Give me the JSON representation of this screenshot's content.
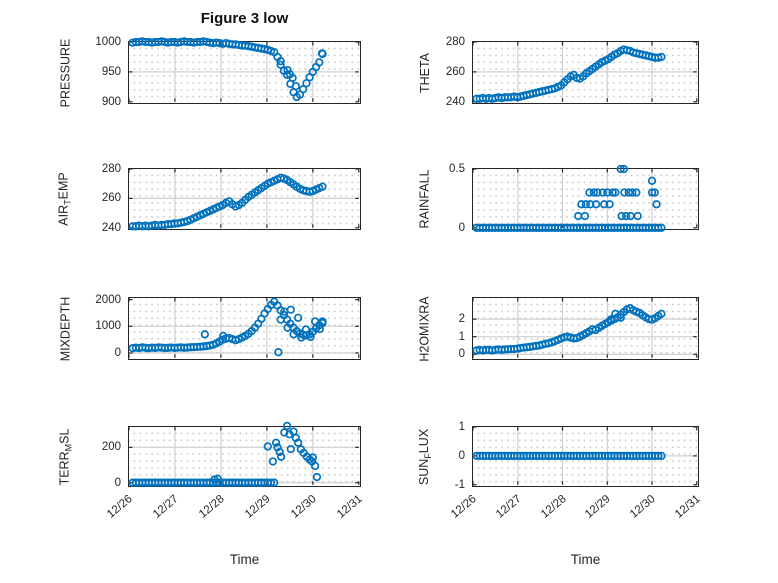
{
  "title": "Figure 3 low",
  "x_axis": {
    "min": 0,
    "max": 5,
    "ticks": [
      0,
      1,
      2,
      3,
      4,
      5
    ],
    "tick_labels": [
      "12/26",
      "12/27",
      "12/28",
      "12/29",
      "12/30",
      "12/31"
    ],
    "label": "Time"
  },
  "style": {
    "marker_color": "#0072BD",
    "marker_radius": 3.3,
    "marker_stroke": 1.7,
    "grid_color": "#d0d0d0",
    "tick_color": "#262626"
  },
  "chart_data": [
    {
      "name": "PRESSURE",
      "type": "scatter",
      "ylabel_parts": [
        {
          "t": "PRESSURE",
          "sub": false
        }
      ],
      "ylim": [
        900,
        1000
      ],
      "yticks": [
        {
          "v": 900,
          "label": "900"
        },
        {
          "v": 950,
          "label": "950"
        },
        {
          "v": 1000,
          "label": "1000"
        }
      ],
      "series": [
        {
          "x0": 0.08,
          "dx": 0.07,
          "y": [
            999,
            1000,
            1000,
            1001,
            1000,
            1000,
            999,
            1000,
            1000,
            1001,
            1000,
            999,
            1000,
            1000,
            999,
            1000,
            1001,
            1000,
            1000,
            999,
            1000,
            1000,
            1001,
            1000,
            999,
            998,
            999,
            998,
            997,
            998,
            997,
            996,
            996,
            995,
            994,
            994,
            993,
            992,
            991,
            990,
            989,
            988,
            987,
            985,
            983,
            975,
            962,
            952,
            945,
            930,
            916,
            908,
            912,
            921,
            931,
            941,
            950,
            958,
            966,
            980
          ]
        }
      ],
      "points": [
        [
          3.3,
          968
        ],
        [
          3.45,
          953
        ],
        [
          3.5,
          946
        ],
        [
          3.56,
          940
        ],
        [
          3.63,
          926
        ],
        [
          4.2,
          981
        ]
      ]
    },
    {
      "name": "THETA",
      "type": "scatter",
      "ylabel_parts": [
        {
          "t": "THETA",
          "sub": false
        }
      ],
      "ylim": [
        240,
        280
      ],
      "yticks": [
        {
          "v": 240,
          "label": "240"
        },
        {
          "v": 260,
          "label": "260"
        },
        {
          "v": 280,
          "label": "280"
        }
      ],
      "series": [
        {
          "x0": 0.08,
          "dx": 0.07,
          "y": [
            242,
            242,
            242.5,
            242,
            242.5,
            242,
            242.5,
            243,
            242.5,
            243,
            243,
            243,
            243.5,
            243,
            243.5,
            244,
            244.5,
            245,
            245.5,
            246,
            246.5,
            247,
            247.5,
            248,
            248.5,
            249,
            250,
            251,
            253,
            255,
            257,
            258,
            256,
            255.5,
            257,
            259,
            260.5,
            262,
            263.5,
            265,
            266.5,
            267.5,
            268.5,
            270,
            271.5,
            272.5,
            274,
            275,
            274.5,
            274,
            273,
            272.5,
            272,
            271.5,
            271,
            270.5,
            270,
            269.5,
            269.5,
            270
          ]
        }
      ],
      "points": []
    },
    {
      "name": "AIR_TEMP",
      "type": "scatter",
      "ylabel_parts": [
        {
          "t": "AIR",
          "sub": false
        },
        {
          "t": "T",
          "sub": true
        },
        {
          "t": "EMP",
          "sub": false
        }
      ],
      "ylim": [
        240,
        280
      ],
      "yticks": [
        {
          "v": 240,
          "label": "240"
        },
        {
          "v": 260,
          "label": "260"
        },
        {
          "v": 280,
          "label": "280"
        }
      ],
      "series": [
        {
          "x0": 0.08,
          "dx": 0.07,
          "y": [
            241,
            241,
            241.5,
            241,
            241.5,
            241,
            241.5,
            242,
            241.5,
            242,
            242,
            242.5,
            242.5,
            243,
            243,
            243.5,
            244,
            244.5,
            245.5,
            246.5,
            247.5,
            248.5,
            249.5,
            250.5,
            251.5,
            252.5,
            253.5,
            254.5,
            255.5,
            257,
            258,
            256,
            254.5,
            255.5,
            257,
            259,
            261,
            262.5,
            264,
            265.5,
            267,
            268.5,
            270,
            271,
            272,
            273,
            274,
            273.5,
            272.5,
            271,
            269.5,
            268,
            266.5,
            265.5,
            265,
            264.5,
            265,
            266,
            267,
            268
          ]
        }
      ],
      "points": []
    },
    {
      "name": "RAINFALL",
      "type": "scatter",
      "ylabel_parts": [
        {
          "t": "RAINFALL",
          "sub": false
        }
      ],
      "ylim": [
        0,
        0.5
      ],
      "yticks": [
        {
          "v": 0,
          "label": "0"
        },
        {
          "v": 0.5,
          "label": "0.5"
        }
      ],
      "series": [
        {
          "x0": 0.08,
          "dx": 0.07,
          "n": 60,
          "const": 0
        }
      ],
      "points": [
        [
          2.35,
          0.1
        ],
        [
          2.42,
          0.2
        ],
        [
          2.5,
          0.1
        ],
        [
          2.52,
          0.2
        ],
        [
          2.6,
          0.3
        ],
        [
          2.62,
          0.2
        ],
        [
          2.7,
          0.3
        ],
        [
          2.75,
          0.2
        ],
        [
          2.78,
          0.3
        ],
        [
          2.9,
          0.3
        ],
        [
          2.93,
          0.2
        ],
        [
          3.0,
          0.3
        ],
        [
          3.05,
          0.2
        ],
        [
          3.12,
          0.3
        ],
        [
          3.18,
          0.3
        ],
        [
          3.3,
          0.5
        ],
        [
          3.37,
          0.5
        ],
        [
          3.32,
          0.1
        ],
        [
          3.42,
          0.1
        ],
        [
          3.52,
          0.1
        ],
        [
          3.38,
          0.3
        ],
        [
          3.48,
          0.3
        ],
        [
          3.56,
          0.3
        ],
        [
          3.65,
          0.3
        ],
        [
          3.68,
          0.1
        ],
        [
          4.0,
          0.4
        ],
        [
          4.0,
          0.3
        ],
        [
          4.06,
          0.3
        ],
        [
          4.1,
          0.2
        ]
      ]
    },
    {
      "name": "MIXDEPTH",
      "type": "scatter",
      "ylabel_parts": [
        {
          "t": "MIXDEPTH",
          "sub": false
        }
      ],
      "ylim": [
        -180,
        2060
      ],
      "yticks": [
        {
          "v": 0,
          "label": "0"
        },
        {
          "v": 1000,
          "label": "1000"
        },
        {
          "v": 2000,
          "label": "2000"
        }
      ],
      "series": [
        {
          "x0": 0.08,
          "dx": 0.07,
          "y": [
            180,
            200,
            185,
            210,
            195,
            180,
            200,
            190,
            210,
            200,
            185,
            195,
            205,
            190,
            200,
            210,
            195,
            205,
            215,
            220,
            225,
            235,
            245,
            260,
            280,
            310,
            360,
            430,
            500,
            540,
            560,
            520,
            480,
            520,
            580,
            640,
            720,
            820,
            950,
            1100,
            1280,
            1480,
            1650,
            1800,
            1920,
            1780,
            1600,
            1420,
            1250,
            1100,
            950,
            820,
            730,
            680,
            660,
            700,
            800,
            920,
            1040,
            1120
          ]
        }
      ],
      "points": [
        [
          1.65,
          700
        ],
        [
          2.05,
          640
        ],
        [
          3.25,
          30
        ],
        [
          3.3,
          1250
        ],
        [
          3.38,
          1550
        ],
        [
          3.45,
          950
        ],
        [
          3.52,
          1620
        ],
        [
          3.58,
          700
        ],
        [
          3.68,
          1320
        ],
        [
          3.75,
          580
        ],
        [
          3.85,
          880
        ],
        [
          3.95,
          600
        ],
        [
          4.05,
          1180
        ],
        [
          4.15,
          900
        ],
        [
          4.21,
          1180
        ]
      ]
    },
    {
      "name": "H2OMIXRA",
      "type": "scatter",
      "ylabel_parts": [
        {
          "t": "H2OMIXRA",
          "sub": false
        }
      ],
      "ylim": [
        -0.2,
        3.2
      ],
      "yticks": [
        {
          "v": 0,
          "label": "0"
        },
        {
          "v": 1,
          "label": "1"
        },
        {
          "v": 2,
          "label": "2"
        }
      ],
      "series": [
        {
          "x0": 0.08,
          "dx": 0.07,
          "y": [
            0.22,
            0.25,
            0.22,
            0.25,
            0.25,
            0.22,
            0.25,
            0.28,
            0.25,
            0.28,
            0.28,
            0.3,
            0.3,
            0.32,
            0.35,
            0.38,
            0.4,
            0.42,
            0.45,
            0.48,
            0.5,
            0.55,
            0.6,
            0.62,
            0.68,
            0.75,
            0.82,
            0.9,
            0.97,
            1.0,
            0.95,
            0.9,
            0.92,
            1.0,
            1.1,
            1.2,
            1.3,
            1.42,
            1.38,
            1.5,
            1.62,
            1.72,
            1.82,
            1.92,
            2.0,
            2.1,
            2.25,
            2.4,
            2.55,
            2.62,
            2.5,
            2.42,
            2.35,
            2.22,
            2.1,
            2.0,
            1.97,
            2.05,
            2.18,
            2.3
          ]
        }
      ],
      "points": [
        [
          3.08,
          1.98
        ],
        [
          3.3,
          2.08
        ],
        [
          3.18,
          2.3
        ]
      ]
    },
    {
      "name": "TERR_M_SL",
      "type": "scatter",
      "ylabel_parts": [
        {
          "t": "TERR",
          "sub": false
        },
        {
          "t": "M",
          "sub": true
        },
        {
          "t": "SL",
          "sub": false
        }
      ],
      "ylim": [
        -12,
        315
      ],
      "yticks": [
        {
          "v": 0,
          "label": "0"
        },
        {
          "v": 200,
          "label": "200"
        }
      ],
      "series": [
        {
          "x0": 0.08,
          "dx": 0.07,
          "n": 45,
          "const": 0
        }
      ],
      "points": [
        [
          1.86,
          18
        ],
        [
          1.93,
          22
        ],
        [
          3.02,
          205
        ],
        [
          3.13,
          120
        ],
        [
          3.2,
          226
        ],
        [
          3.23,
          200
        ],
        [
          3.28,
          174
        ],
        [
          3.31,
          147
        ],
        [
          3.38,
          284
        ],
        [
          3.44,
          321
        ],
        [
          3.49,
          274
        ],
        [
          3.52,
          190
        ],
        [
          3.58,
          289
        ],
        [
          3.63,
          253
        ],
        [
          3.68,
          226
        ],
        [
          3.74,
          189
        ],
        [
          3.8,
          168
        ],
        [
          3.87,
          147
        ],
        [
          3.93,
          131
        ],
        [
          3.98,
          120
        ],
        [
          4.0,
          142
        ],
        [
          4.05,
          95
        ],
        [
          4.09,
          32
        ]
      ]
    },
    {
      "name": "SUN_FLUX",
      "type": "scatter",
      "ylabel_parts": [
        {
          "t": "SUN",
          "sub": false
        },
        {
          "t": "F",
          "sub": true
        },
        {
          "t": "LUX",
          "sub": false
        }
      ],
      "ylim": [
        -1,
        1
      ],
      "yticks": [
        {
          "v": -1,
          "label": "-1"
        },
        {
          "v": 0,
          "label": "0"
        },
        {
          "v": 1,
          "label": "1"
        }
      ],
      "series": [
        {
          "x0": 0.08,
          "dx": 0.07,
          "n": 60,
          "const": 0
        }
      ],
      "points": []
    }
  ]
}
